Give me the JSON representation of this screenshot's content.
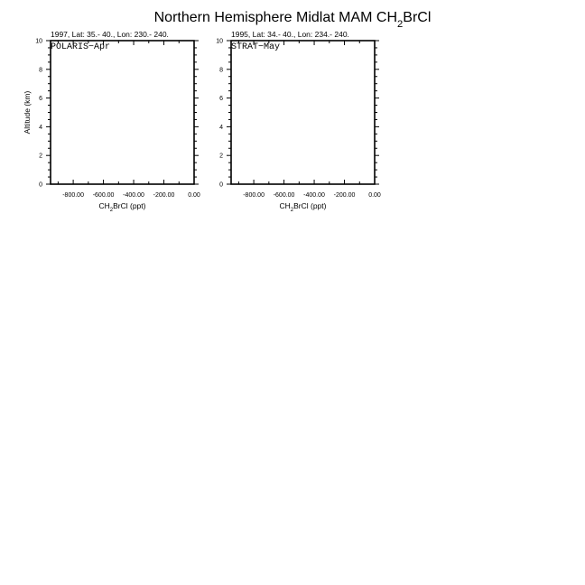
{
  "chart_data": [
    {
      "type": "line",
      "title": "Northern Hemisphere Midlat MAM CH2BrCl",
      "subtitle": "1997, Lat: 35.- 40., Lon: 230.- 240.",
      "annotation": "POLARIS−Apr",
      "xlabel": "CH2BrCl (ppt)",
      "ylabel": "Altitude (km)",
      "xlim": [
        -950,
        0
      ],
      "ylim": [
        0,
        10
      ],
      "xticks": [
        -800,
        -600,
        -400,
        -200,
        0
      ],
      "xtick_labels": [
        "-800.00",
        "-600.00",
        "-400.00",
        "-200.00",
        "0.00"
      ],
      "yticks": [
        0,
        2,
        4,
        6,
        8,
        10
      ],
      "ytick_labels": [
        "0",
        "2",
        "4",
        "6",
        "8",
        "10"
      ],
      "series": []
    },
    {
      "type": "line",
      "subtitle": "1995, Lat: 34.- 40., Lon: 234.- 240.",
      "annotation": "STRAT−May",
      "xlabel": "CH2BrCl (ppt)",
      "xlim": [
        -950,
        0
      ],
      "ylim": [
        0,
        10
      ],
      "xticks": [
        -800,
        -600,
        -400,
        -200,
        0
      ],
      "xtick_labels": [
        "-800.00",
        "-600.00",
        "-400.00",
        "-200.00",
        "0.00"
      ],
      "yticks": [
        0,
        2,
        4,
        6,
        8,
        10
      ],
      "ytick_labels": [
        "0",
        "2",
        "4",
        "6",
        "8",
        "10"
      ],
      "series": []
    }
  ]
}
